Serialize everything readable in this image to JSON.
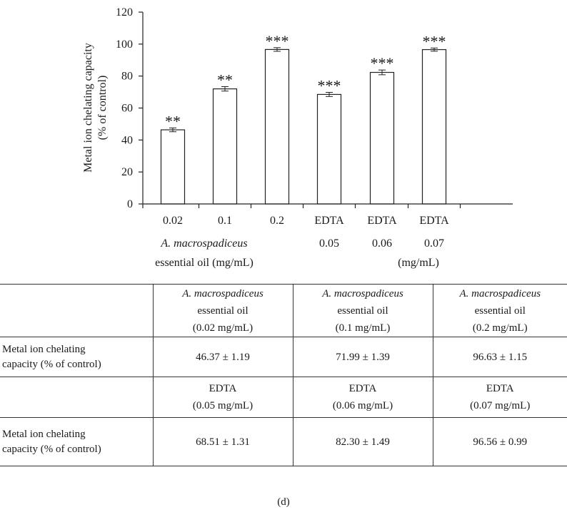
{
  "chart_data": {
    "type": "bar",
    "ylabel_lines": [
      "Metal ion chelating capacity",
      "(% of control)"
    ],
    "ylim": [
      0,
      120
    ],
    "yticks": [
      0,
      20,
      40,
      60,
      80,
      100,
      120
    ],
    "bars": [
      {
        "tick": "0.02",
        "value": 46.37,
        "error": 1.19,
        "significance": "**"
      },
      {
        "tick": "0.1",
        "value": 71.99,
        "error": 1.39,
        "significance": "**"
      },
      {
        "tick": "0.2",
        "value": 96.63,
        "error": 1.15,
        "significance": "***"
      },
      {
        "tick": "EDTA",
        "value": 68.51,
        "error": 1.31,
        "significance": "***"
      },
      {
        "tick": "EDTA",
        "value": 82.3,
        "error": 1.49,
        "significance": "***"
      },
      {
        "tick": "EDTA",
        "value": 96.56,
        "error": 0.99,
        "significance": "***"
      }
    ],
    "edta_sublabels": [
      "0.05",
      "0.06",
      "0.07"
    ],
    "group_label_oil": {
      "species": "A. macrospadiceus",
      "rest": "essential oil (mg/mL)"
    },
    "group_label_edta": "(mg/mL)",
    "grid": false,
    "legend": "none"
  },
  "table": {
    "header_row_1": [
      {
        "species": "A. macrospadiceus",
        "line2": "essential oil",
        "line3": "(0.02 mg/mL)"
      },
      {
        "species": "A. macrospadiceus",
        "line2": "essential oil",
        "line3": "(0.1 mg/mL)"
      },
      {
        "species": "A. macrospadiceus",
        "line2": "essential oil",
        "line3": "(0.2 mg/mL)"
      }
    ],
    "row_label_1": "Metal ion chelating",
    "row_label_2": "capacity (% of control)",
    "values_row_1": [
      "46.37 ± 1.19",
      "71.99 ± 1.39",
      "96.63 ± 1.15"
    ],
    "header_row_2": [
      {
        "line1": "EDTA",
        "line2": "(0.05 mg/mL)"
      },
      {
        "line1": "EDTA",
        "line2": "(0.06 mg/mL)"
      },
      {
        "line1": "EDTA",
        "line2": "(0.07 mg/mL)"
      }
    ],
    "values_row_2": [
      "68.51 ± 1.31",
      "82.30 ± 1.49",
      "96.56 ± 0.99"
    ]
  },
  "caption": "(d)"
}
